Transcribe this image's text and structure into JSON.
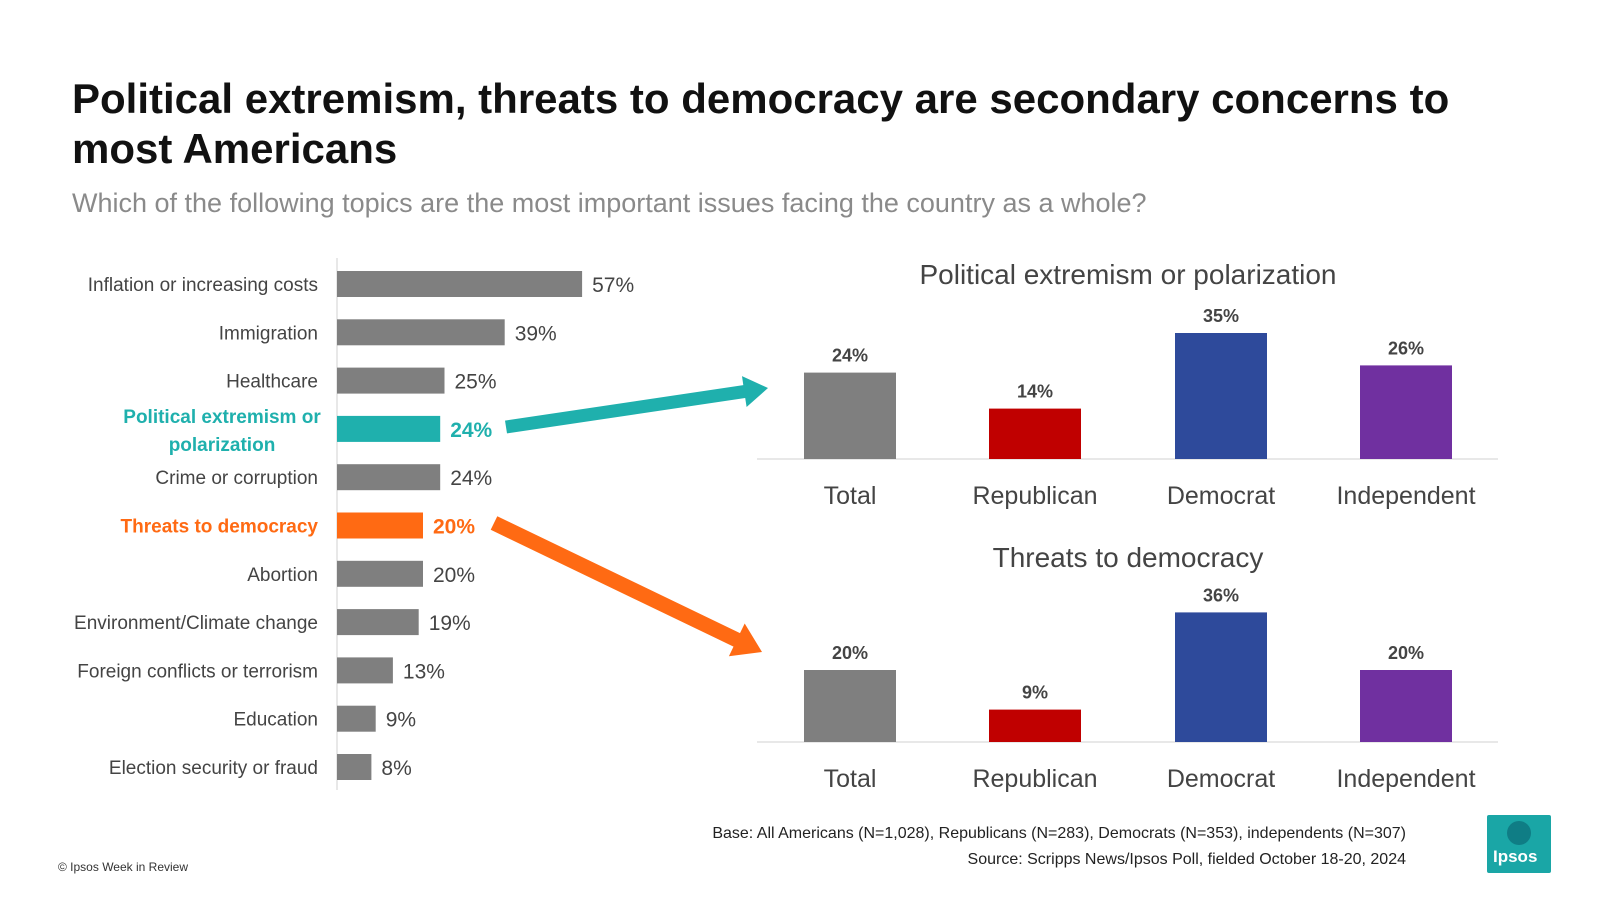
{
  "title": "Political extremism, threats to democracy are secondary concerns to most Americans",
  "subtitle": "Which of the following topics are the most important issues facing the country as a whole?",
  "colors": {
    "gray": "#7f7f7f",
    "teal": "#1fb0ad",
    "orange": "#ff6a13",
    "republican": "#c00000",
    "democrat": "#2e4a9b",
    "independent": "#7030a0"
  },
  "chart_data": [
    {
      "type": "bar",
      "orientation": "horizontal",
      "categories": [
        "Inflation or increasing costs",
        "Immigration",
        "Healthcare",
        "Political extremism or polarization",
        "Crime or corruption",
        "Threats to democracy",
        "Abortion",
        "Environment/Climate change",
        "Foreign conflicts or terrorism",
        "Education",
        "Election security or fraud"
      ],
      "values": [
        57,
        39,
        25,
        24,
        24,
        20,
        20,
        19,
        13,
        9,
        8
      ],
      "value_labels": [
        "57%",
        "39%",
        "25%",
        "24%",
        "24%",
        "20%",
        "20%",
        "19%",
        "13%",
        "9%",
        "8%"
      ],
      "highlight": {
        "3": "teal",
        "5": "orange"
      }
    },
    {
      "type": "bar",
      "title": "Political extremism or polarization",
      "categories": [
        "Total",
        "Republican",
        "Democrat",
        "Independent"
      ],
      "values": [
        24,
        14,
        35,
        26
      ],
      "value_labels": [
        "24%",
        "14%",
        "35%",
        "26%"
      ],
      "bar_colors": [
        "gray",
        "republican",
        "democrat",
        "independent"
      ]
    },
    {
      "type": "bar",
      "title": "Threats to democracy",
      "categories": [
        "Total",
        "Republican",
        "Democrat",
        "Independent"
      ],
      "values": [
        20,
        9,
        36,
        20
      ],
      "value_labels": [
        "20%",
        "9%",
        "36%",
        "20%"
      ],
      "bar_colors": [
        "gray",
        "republican",
        "democrat",
        "independent"
      ]
    }
  ],
  "footer": {
    "copyright": "© Ipsos Week in Review",
    "base": "Base: All Americans (N=1,028), Republicans (N=283), Democrats (N=353), independents (N=307)",
    "source": "Source: Scripps News/Ipsos Poll, fielded October 18-20, 2024",
    "logo_text": "Ipsos"
  }
}
